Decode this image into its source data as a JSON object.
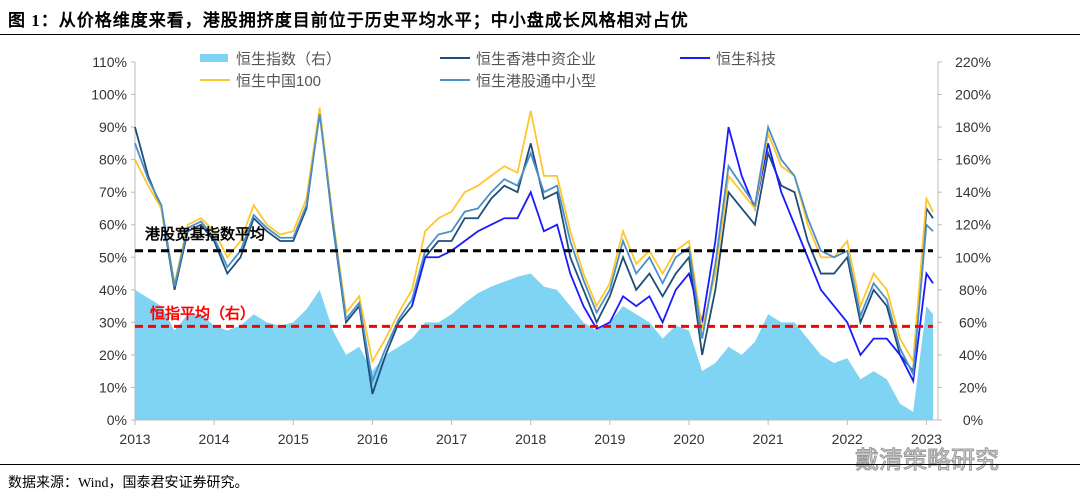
{
  "title": "图 1：从价格维度来看，港股拥挤度目前位于历史平均水平；中小盘成长风格相对占优",
  "source": "数据来源：Wind，国泰君安证券研究。",
  "watermark": "戴清策略研究",
  "chart_data": {
    "type": "line",
    "left_ylim": [
      0,
      110
    ],
    "right_ylim": [
      0,
      220
    ],
    "left_yticks": [
      "0%",
      "10%",
      "20%",
      "30%",
      "40%",
      "50%",
      "60%",
      "70%",
      "80%",
      "90%",
      "100%",
      "110%"
    ],
    "right_yticks": [
      "0%",
      "20%",
      "40%",
      "60%",
      "80%",
      "100%",
      "120%",
      "140%",
      "160%",
      "180%",
      "200%",
      "220%"
    ],
    "xticks": [
      "2013",
      "2014",
      "2015",
      "2016",
      "2017",
      "2018",
      "2019",
      "2020",
      "2021",
      "2022",
      "2023"
    ],
    "legend_placement": "top",
    "x": [
      "2013-01",
      "2013-03",
      "2013-05",
      "2013-07",
      "2013-09",
      "2013-11",
      "2014-01",
      "2014-03",
      "2014-05",
      "2014-07",
      "2014-09",
      "2014-11",
      "2015-01",
      "2015-03",
      "2015-05",
      "2015-07",
      "2015-09",
      "2015-11",
      "2016-01",
      "2016-03",
      "2016-05",
      "2016-07",
      "2016-09",
      "2016-11",
      "2017-01",
      "2017-03",
      "2017-05",
      "2017-07",
      "2017-09",
      "2017-11",
      "2018-01",
      "2018-03",
      "2018-05",
      "2018-07",
      "2018-09",
      "2018-11",
      "2019-01",
      "2019-03",
      "2019-05",
      "2019-07",
      "2019-09",
      "2019-11",
      "2020-01",
      "2020-03",
      "2020-05",
      "2020-07",
      "2020-09",
      "2020-11",
      "2021-01",
      "2021-03",
      "2021-05",
      "2021-07",
      "2021-09",
      "2021-11",
      "2022-01",
      "2022-03",
      "2022-05",
      "2022-07",
      "2022-09",
      "2022-11",
      "2023-01",
      "2023-02"
    ],
    "series": [
      {
        "name": "恒生指数（右）",
        "axis": "right",
        "kind": "area",
        "color": "#7fd3f3",
        "values": [
          80,
          75,
          70,
          55,
          65,
          65,
          58,
          55,
          58,
          65,
          60,
          58,
          60,
          68,
          80,
          55,
          40,
          45,
          30,
          40,
          45,
          50,
          60,
          60,
          65,
          72,
          78,
          82,
          85,
          88,
          90,
          82,
          80,
          70,
          60,
          55,
          60,
          70,
          65,
          60,
          50,
          58,
          55,
          30,
          35,
          45,
          40,
          48,
          65,
          60,
          60,
          50,
          40,
          35,
          38,
          25,
          30,
          25,
          10,
          5,
          70,
          65
        ]
      },
      {
        "name": "恒生香港中资企业",
        "axis": "left",
        "color": "#1f4e79",
        "values": [
          90,
          75,
          65,
          40,
          58,
          60,
          55,
          45,
          50,
          62,
          58,
          55,
          55,
          65,
          95,
          60,
          30,
          35,
          8,
          20,
          30,
          35,
          50,
          55,
          55,
          62,
          62,
          68,
          72,
          70,
          85,
          68,
          70,
          50,
          40,
          30,
          38,
          50,
          40,
          45,
          38,
          45,
          50,
          20,
          40,
          70,
          65,
          60,
          82,
          72,
          70,
          55,
          45,
          45,
          50,
          30,
          40,
          35,
          20,
          15,
          65,
          62
        ]
      },
      {
        "name": "恒生科技",
        "axis": "left",
        "color": "#1a1aff",
        "values": [
          null,
          null,
          null,
          null,
          null,
          null,
          null,
          null,
          null,
          null,
          null,
          null,
          null,
          null,
          null,
          null,
          null,
          null,
          null,
          null,
          null,
          35,
          50,
          50,
          52,
          55,
          58,
          60,
          62,
          62,
          70,
          58,
          60,
          45,
          35,
          28,
          30,
          38,
          35,
          38,
          30,
          40,
          45,
          30,
          55,
          90,
          75,
          65,
          85,
          70,
          60,
          50,
          40,
          35,
          30,
          20,
          25,
          25,
          20,
          12,
          45,
          42
        ]
      },
      {
        "name": "恒生中国100",
        "axis": "left",
        "color": "#ffc72c",
        "values": [
          80,
          72,
          65,
          42,
          60,
          62,
          58,
          50,
          55,
          66,
          60,
          57,
          58,
          68,
          96,
          62,
          33,
          38,
          18,
          25,
          33,
          40,
          58,
          62,
          64,
          70,
          72,
          75,
          78,
          76,
          95,
          75,
          75,
          58,
          45,
          35,
          42,
          58,
          48,
          52,
          45,
          52,
          55,
          28,
          45,
          75,
          70,
          65,
          88,
          78,
          75,
          60,
          50,
          50,
          55,
          35,
          45,
          40,
          25,
          18,
          68,
          64
        ]
      },
      {
        "name": "恒生港股通中小型",
        "axis": "left",
        "color": "#4a90c8",
        "values": [
          85,
          74,
          66,
          41,
          59,
          61,
          56,
          47,
          52,
          63,
          59,
          56,
          56,
          66,
          94,
          61,
          31,
          36,
          12,
          22,
          31,
          37,
          52,
          57,
          58,
          64,
          65,
          70,
          74,
          72,
          82,
          70,
          72,
          55,
          43,
          33,
          40,
          55,
          45,
          50,
          42,
          50,
          53,
          25,
          48,
          78,
          72,
          66,
          90,
          80,
          75,
          62,
          52,
          50,
          52,
          32,
          42,
          37,
          22,
          14,
          60,
          58
        ]
      },
      {
        "name": "港股宽基指数平均",
        "axis": "left",
        "kind": "hline",
        "color": "#000000",
        "value": 52
      },
      {
        "name": "恒指平均（右）",
        "axis": "right",
        "kind": "hline",
        "color": "#ff0000",
        "value": 57.5
      }
    ]
  }
}
